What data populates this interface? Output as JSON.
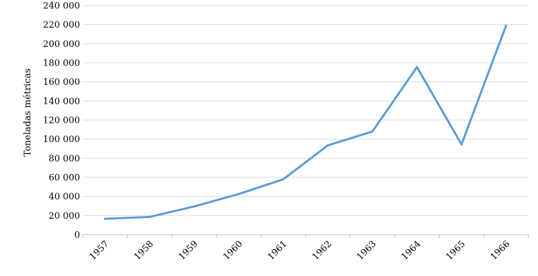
{
  "chart_data": {
    "type": "line",
    "title": "",
    "xlabel": "",
    "ylabel": "Toneladas métricas",
    "categories": [
      "1957",
      "1958",
      "1959",
      "1960",
      "1961",
      "1962",
      "1963",
      "1964",
      "1965",
      "1966"
    ],
    "series": [
      {
        "values": [
          16500,
          18500,
          29500,
          42500,
          58000,
          93500,
          108000,
          175500,
          94500,
          219000
        ]
      }
    ],
    "ylim": [
      0,
      240000
    ],
    "yticks": [
      0,
      20000,
      40000,
      60000,
      80000,
      100000,
      120000,
      140000,
      160000,
      180000,
      200000,
      220000,
      240000
    ],
    "ytick_labels": [
      "0",
      "20 000",
      "40 000",
      "60 000",
      "80 000",
      "100 000",
      "120 000",
      "140 000",
      "160 000",
      "180 000",
      "200 000",
      "220 000",
      "240 000"
    ],
    "grid": true,
    "legend": "none",
    "colors": {
      "line": "#5b9bd5",
      "grid": "#d9d9d9",
      "axis": "#bfbfbf"
    }
  }
}
